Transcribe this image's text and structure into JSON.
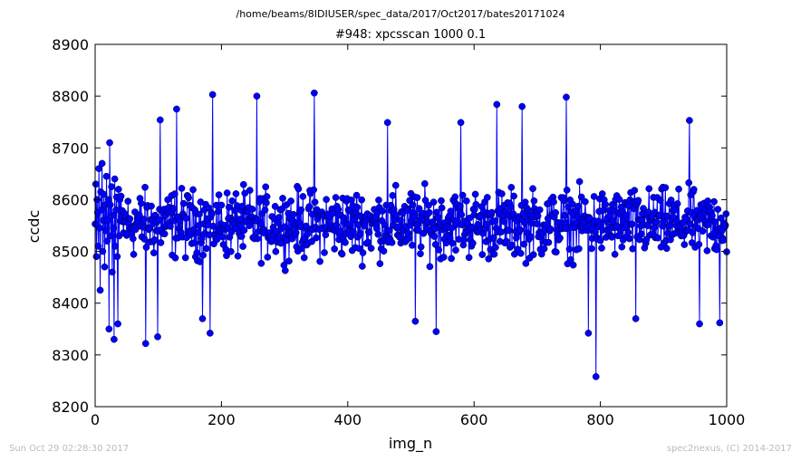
{
  "page": {
    "supertitle": "/home/beams/8IDIUSER/spec_data/2017/Oct2017/bates20171024",
    "footer_left": "Sun Oct 29 02:28:30 2017",
    "footer_right": "spec2nexus, (C) 2014-2017"
  },
  "chart_data": {
    "type": "line",
    "title": "#948: xpcsscan 1000 0.1",
    "xlabel": "img_n",
    "ylabel": "ccdc",
    "xlim": [
      0,
      1000
    ],
    "ylim": [
      8200,
      8900
    ],
    "x_ticks": [
      "0",
      "200",
      "400",
      "600",
      "800",
      "1000"
    ],
    "y_ticks": [
      "8200",
      "8300",
      "8400",
      "8500",
      "8600",
      "8700",
      "8800",
      "8900"
    ],
    "grid": false,
    "marker": "circle",
    "color": "#0000ff",
    "series": [
      {
        "x_start": 0,
        "x_step": 1,
        "mean": 8553,
        "sampled_values": [
          8553,
          8630,
          8490,
          8600,
          8575,
          8510,
          8660,
          8545,
          8425,
          8615,
          8580,
          8670,
          8500,
          8560,
          8610,
          8470,
          8590,
          8540,
          8645,
          8520,
          8560,
          8600,
          8350,
          8710,
          8590,
          8530,
          8625,
          8460,
          8570,
          8545,
          8322,
          8640,
          8510,
          8580,
          8605,
          8490,
          8560,
          8620,
          8530,
          8600
        ],
        "notable_points": [
          {
            "x": 347,
            "y": 8806
          },
          {
            "x": 186,
            "y": 8803
          },
          {
            "x": 256,
            "y": 8800
          },
          {
            "x": 746,
            "y": 8798
          },
          {
            "x": 636,
            "y": 8784
          },
          {
            "x": 129,
            "y": 8775
          },
          {
            "x": 676,
            "y": 8780
          },
          {
            "x": 941,
            "y": 8753
          },
          {
            "x": 463,
            "y": 8749
          },
          {
            "x": 579,
            "y": 8749
          },
          {
            "x": 103,
            "y": 8754
          },
          {
            "x": 793,
            "y": 8258
          },
          {
            "x": 80,
            "y": 8322
          },
          {
            "x": 99,
            "y": 8335
          },
          {
            "x": 781,
            "y": 8342
          },
          {
            "x": 182,
            "y": 8342
          },
          {
            "x": 540,
            "y": 8345
          },
          {
            "x": 957,
            "y": 8360
          },
          {
            "x": 36,
            "y": 8360
          },
          {
            "x": 507,
            "y": 8365
          },
          {
            "x": 989,
            "y": 8362
          },
          {
            "x": 170,
            "y": 8370
          },
          {
            "x": 856,
            "y": 8370
          }
        ]
      }
    ]
  }
}
